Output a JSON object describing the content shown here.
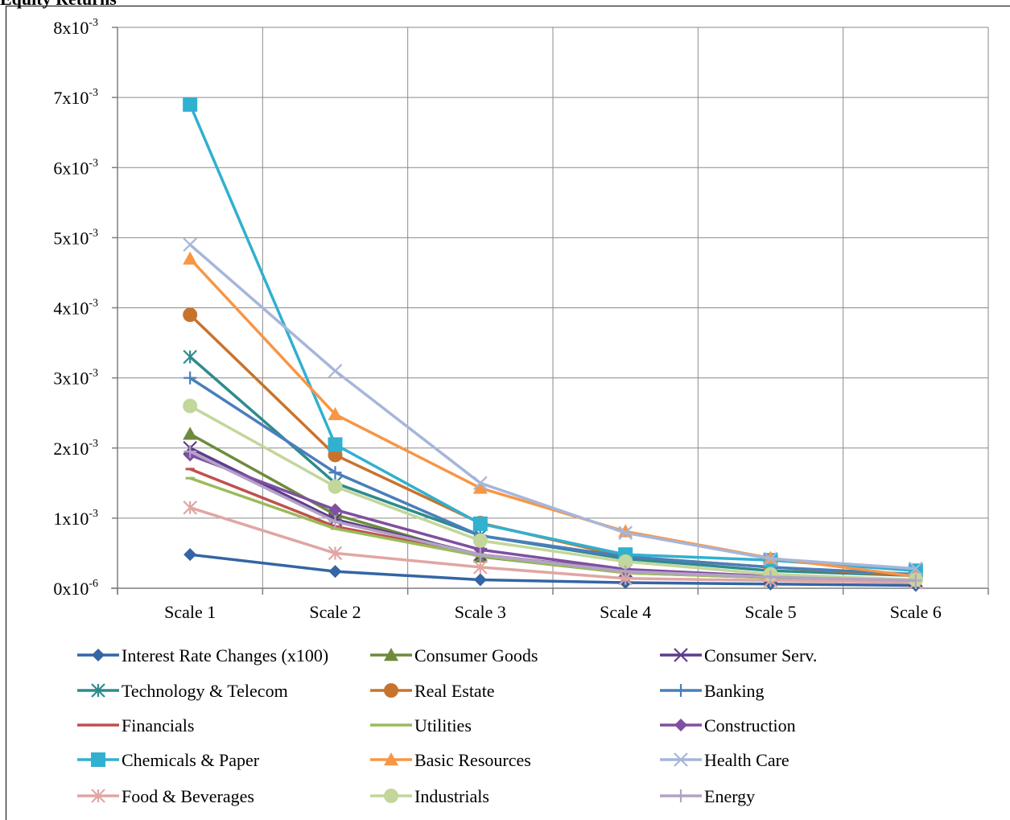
{
  "page": {
    "cut_title": "Equity Returns"
  },
  "chart_data": {
    "type": "line",
    "categories": [
      "Scale 1",
      "Scale 2",
      "Scale 3",
      "Scale 4",
      "Scale 5",
      "Scale 6"
    ],
    "ylim": [
      0,
      0.008
    ],
    "y_ticks": [
      {
        "value": 0,
        "mantissa": "0x10",
        "exp": "-6"
      },
      {
        "value": 0.001,
        "mantissa": "1x10",
        "exp": "-3"
      },
      {
        "value": 0.002,
        "mantissa": "2x10",
        "exp": "-3"
      },
      {
        "value": 0.003,
        "mantissa": "3x10",
        "exp": "-3"
      },
      {
        "value": 0.004,
        "mantissa": "4x10",
        "exp": "-3"
      },
      {
        "value": 0.005,
        "mantissa": "5x10",
        "exp": "-3"
      },
      {
        "value": 0.006,
        "mantissa": "6x10",
        "exp": "-3"
      },
      {
        "value": 0.007,
        "mantissa": "7x10",
        "exp": "-3"
      },
      {
        "value": 0.008,
        "mantissa": "8x10",
        "exp": "-3"
      }
    ],
    "grid": true,
    "legend_position": "bottom",
    "series": [
      {
        "name": "Interest Rate Changes (x100)",
        "color": "#3465A4",
        "marker": "diamond",
        "values": [
          0.00048,
          0.00024,
          0.00012,
          8e-05,
          6e-05,
          4e-05
        ]
      },
      {
        "name": "Consumer Goods",
        "color": "#6E8B3D",
        "marker": "triangle",
        "values": [
          0.0022,
          0.00105,
          0.00045,
          0.00022,
          0.00015,
          0.0001
        ]
      },
      {
        "name": "Consumer Serv.",
        "color": "#5E3C8C",
        "marker": "x",
        "values": [
          0.002,
          0.00098,
          0.00048,
          0.00025,
          0.00016,
          0.00011
        ]
      },
      {
        "name": "Technology & Telecom",
        "color": "#2E8B8B",
        "marker": "star",
        "values": [
          0.0033,
          0.0015,
          0.00075,
          0.00042,
          0.00025,
          0.00018
        ]
      },
      {
        "name": "Real Estate",
        "color": "#C8732C",
        "marker": "circle",
        "values": [
          0.0039,
          0.0019,
          0.00093,
          0.00045,
          0.0003,
          0.00018
        ]
      },
      {
        "name": "Banking",
        "color": "#4A7EBB",
        "marker": "plus",
        "values": [
          0.003,
          0.00165,
          0.00075,
          0.00045,
          0.0003,
          0.0002
        ]
      },
      {
        "name": "Financials",
        "color": "#C0504D",
        "marker": "dash",
        "values": [
          0.0017,
          0.00088,
          0.00048,
          0.00024,
          0.00016,
          0.00011
        ]
      },
      {
        "name": "Utilities",
        "color": "#9BBB59",
        "marker": "dash",
        "values": [
          0.00157,
          0.00085,
          0.00046,
          0.00022,
          0.00015,
          0.0001
        ]
      },
      {
        "name": "Construction",
        "color": "#7F4FA0",
        "marker": "diamond",
        "values": [
          0.0019,
          0.00112,
          0.00055,
          0.00027,
          0.00017,
          0.00012
        ]
      },
      {
        "name": "Chemicals & Paper",
        "color": "#31B0CF",
        "marker": "square",
        "values": [
          0.0069,
          0.00205,
          0.00092,
          0.00048,
          0.0004,
          0.00025
        ]
      },
      {
        "name": "Basic Resources",
        "color": "#F79646",
        "marker": "triangle",
        "values": [
          0.0047,
          0.00248,
          0.00143,
          0.00081,
          0.00043,
          0.00017
        ]
      },
      {
        "name": "Health Care",
        "color": "#A6B6DA",
        "marker": "x",
        "values": [
          0.0049,
          0.0031,
          0.0015,
          0.00079,
          0.00042,
          0.00028
        ]
      },
      {
        "name": "Food & Beverages",
        "color": "#E0A6A4",
        "marker": "star",
        "values": [
          0.00115,
          0.0005,
          0.0003,
          0.00014,
          0.00011,
          8e-05
        ]
      },
      {
        "name": "Industrials",
        "color": "#C3D69B",
        "marker": "circle",
        "values": [
          0.0026,
          0.00145,
          0.00068,
          0.00038,
          0.0002,
          0.00012
        ]
      },
      {
        "name": "Energy",
        "color": "#B3A2C7",
        "marker": "plus",
        "values": [
          0.00195,
          0.00095,
          0.00048,
          0.00024,
          0.00016,
          0.00011
        ]
      }
    ]
  }
}
